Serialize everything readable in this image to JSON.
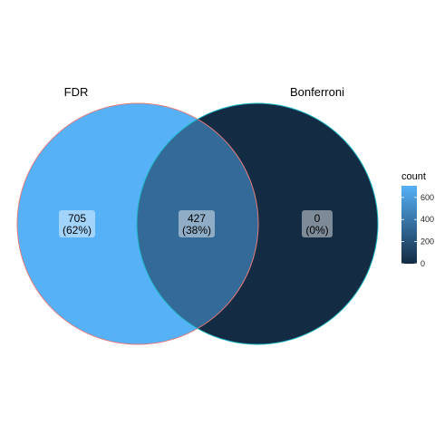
{
  "sets": [
    {
      "name": "FDR",
      "outline": "#e07b7b"
    },
    {
      "name": "Bonferroni",
      "outline": "#1fb8c8"
    }
  ],
  "regions": [
    {
      "id": "fdr-only",
      "count": "705",
      "percent": "(62%)",
      "value": 705,
      "fill": "#56b1f7"
    },
    {
      "id": "intersection",
      "count": "427",
      "percent": "(38%)",
      "value": 427,
      "fill": "#336a98"
    },
    {
      "id": "bonferroni-only",
      "count": "0",
      "percent": "(0%)",
      "value": 0,
      "fill": "#132b43"
    }
  ],
  "legend": {
    "title": "count",
    "ticks": [
      "600",
      "400",
      "200",
      "0"
    ],
    "tick_values": [
      600,
      400,
      200,
      0
    ],
    "range": [
      0,
      705
    ],
    "color_low": "#132b43",
    "color_high": "#56b1f7"
  }
}
